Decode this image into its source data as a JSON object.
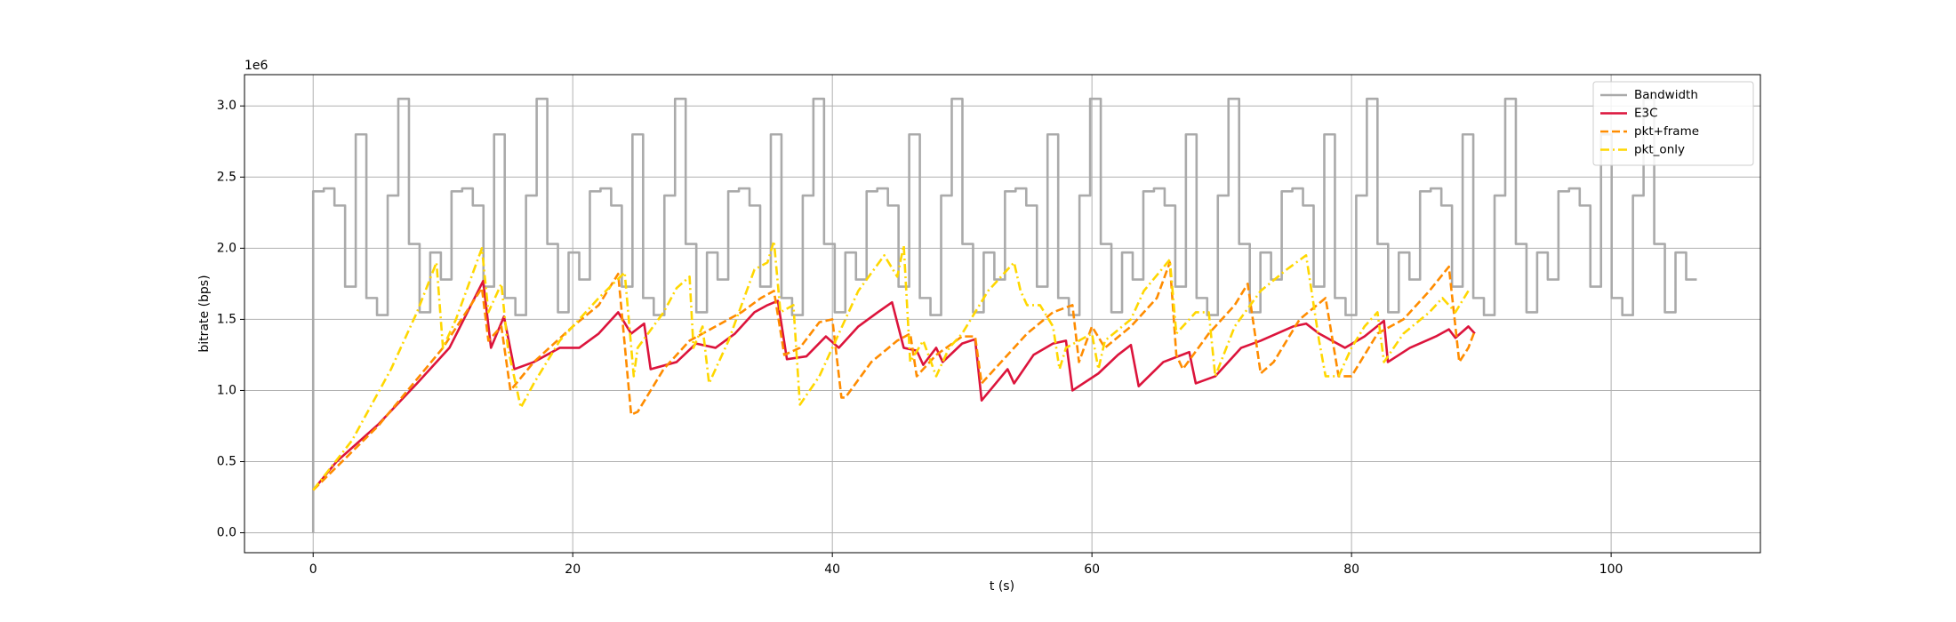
{
  "chart_data": {
    "type": "line",
    "x_label": "t (s)",
    "y_label": "bitrate (bps)",
    "y_offset_label": "1e6",
    "xlim": [
      -5.29,
      111.5
    ],
    "xticks": [
      0,
      20,
      40,
      60,
      80,
      100
    ],
    "ylim": [
      -0.14,
      3.22
    ],
    "yticks": [
      {
        "value": 0,
        "label": "0.0"
      },
      0.5,
      {
        "value": 1,
        "label": "1.0"
      },
      1.5,
      {
        "value": 2,
        "label": "2.0"
      },
      2.5,
      {
        "value": 3,
        "label": "3.0"
      }
    ],
    "grid": true,
    "legend_loc": "upper right",
    "series": [
      {
        "name": "Bandwidth",
        "color": "#aaaaaa",
        "linestyle": "solid",
        "drawstyle": "steps-post",
        "x": [
          0,
          0,
          0.82,
          1.64,
          2.46,
          3.28,
          4.1,
          4.92,
          5.74,
          6.56,
          7.38,
          8.2,
          9.02,
          9.84,
          10.66,
          11.48,
          12.3,
          13.12,
          13.94,
          14.76,
          15.58,
          16.4,
          17.22,
          18.04,
          18.86,
          19.68,
          20.5,
          21.32,
          22.14,
          22.96,
          23.78,
          24.6,
          25.42,
          26.24,
          27.06,
          27.88,
          28.7,
          29.52,
          30.34,
          31.16,
          31.98,
          32.8,
          33.62,
          34.44,
          35.26,
          36.08,
          36.9,
          37.72,
          38.54,
          39.36,
          40.18,
          41,
          41.82,
          42.64,
          43.46,
          44.28,
          45.1,
          45.92,
          46.74,
          47.56,
          48.38,
          49.2,
          50.02,
          50.84,
          51.66,
          52.48,
          53.3,
          54.12,
          54.94,
          55.76,
          56.58,
          57.4,
          58.22,
          59.04,
          59.86,
          60.68,
          61.5,
          62.32,
          63.14,
          63.96,
          64.78,
          65.6,
          66.42,
          67.24,
          68.06,
          68.88,
          69.7,
          70.52,
          71.34,
          72.16,
          72.98,
          73.8,
          74.62,
          75.44,
          76.26,
          77.08,
          77.9,
          78.72,
          79.54,
          80.36,
          81.18,
          82,
          82.82,
          83.64,
          84.46,
          85.28,
          86.1,
          86.92,
          87.74,
          88.56,
          89.38,
          90.2,
          91.02,
          91.84,
          92.66,
          93.48,
          94.3,
          95.12,
          95.94,
          96.76,
          97.58,
          98.4,
          99.22,
          100.04,
          100.86,
          101.68,
          102.5,
          103.32,
          104.14,
          104.96,
          105.78,
          106.6
        ],
        "values": [
          0,
          2.4,
          2.42,
          2.3,
          1.73,
          2.8,
          1.65,
          1.53,
          2.37,
          3.05,
          2.03,
          1.55,
          1.97,
          1.78,
          2.4,
          2.42,
          2.3,
          1.73,
          2.8,
          1.65,
          1.53,
          2.37,
          3.05,
          2.03,
          1.55,
          1.97,
          1.78,
          2.4,
          2.42,
          2.3,
          1.73,
          2.8,
          1.65,
          1.53,
          2.37,
          3.05,
          2.03,
          1.55,
          1.97,
          1.78,
          2.4,
          2.42,
          2.3,
          1.73,
          2.8,
          1.65,
          1.53,
          2.37,
          3.05,
          2.03,
          1.55,
          1.97,
          1.78,
          2.4,
          2.42,
          2.3,
          1.73,
          2.8,
          1.65,
          1.53,
          2.37,
          3.05,
          2.03,
          1.55,
          1.97,
          1.78,
          2.4,
          2.42,
          2.3,
          1.73,
          2.8,
          1.65,
          1.53,
          2.37,
          3.05,
          2.03,
          1.55,
          1.97,
          1.78,
          2.4,
          2.42,
          2.3,
          1.73,
          2.8,
          1.65,
          1.53,
          2.37,
          3.05,
          2.03,
          1.55,
          1.97,
          1.78,
          2.4,
          2.42,
          2.3,
          1.73,
          2.8,
          1.65,
          1.53,
          2.37,
          3.05,
          2.03,
          1.55,
          1.97,
          1.78,
          2.4,
          2.42,
          2.3,
          1.73,
          2.8,
          1.65,
          1.53,
          2.37,
          3.05,
          2.03,
          1.55,
          1.97,
          1.78,
          2.4,
          2.42,
          2.3,
          1.73,
          2.8,
          1.65,
          1.53,
          2.37,
          3.05,
          2.03,
          1.55,
          1.97,
          1.78,
          1.78
        ]
      },
      {
        "name": "E3C",
        "color": "#dc143c",
        "linestyle": "solid",
        "x": [
          0,
          1.8,
          5,
          8,
          10.5,
          13.1,
          13.7,
          14.7,
          15.5,
          17,
          19,
          20.5,
          22,
          23.5,
          24.5,
          25.5,
          26,
          28,
          29.5,
          31,
          32.5,
          34,
          35,
          35.8,
          36.5,
          38,
          39.5,
          40.5,
          42,
          43.5,
          44.6,
          45.5,
          46.5,
          47,
          48,
          48.5,
          50,
          51,
          51.5,
          53.5,
          54,
          55.5,
          57,
          58,
          58.5,
          60.5,
          62,
          63,
          63.6,
          65.5,
          67.5,
          68,
          69.5,
          71.5,
          73,
          75.5,
          76.5,
          77.5,
          79.5,
          81,
          82.5,
          82.8,
          84.5,
          86.5,
          87.5,
          88,
          89,
          89.5
        ],
        "values": [
          0.3,
          0.5,
          0.76,
          1.05,
          1.3,
          1.77,
          1.3,
          1.52,
          1.15,
          1.2,
          1.3,
          1.3,
          1.4,
          1.55,
          1.4,
          1.47,
          1.15,
          1.2,
          1.33,
          1.3,
          1.4,
          1.55,
          1.6,
          1.63,
          1.22,
          1.24,
          1.38,
          1.3,
          1.45,
          1.55,
          1.62,
          1.3,
          1.28,
          1.18,
          1.3,
          1.2,
          1.33,
          1.36,
          0.93,
          1.15,
          1.05,
          1.25,
          1.33,
          1.35,
          1,
          1.12,
          1.25,
          1.32,
          1.03,
          1.2,
          1.27,
          1.05,
          1.1,
          1.3,
          1.35,
          1.45,
          1.47,
          1.4,
          1.3,
          1.38,
          1.49,
          1.2,
          1.3,
          1.38,
          1.43,
          1.37,
          1.45,
          1.4
        ]
      },
      {
        "name": "pkt+frame",
        "color": "#ff8c00",
        "linestyle": "dashed",
        "x": [
          0,
          5,
          10,
          13,
          13.5,
          14.5,
          15.2,
          17,
          20,
          22,
          23.5,
          24.5,
          25,
          27,
          29,
          31,
          33,
          34.5,
          35.5,
          36.3,
          37.5,
          39,
          40,
          40.7,
          41,
          43,
          45,
          46,
          46.5,
          48,
          50,
          51,
          51.5,
          53,
          55,
          57,
          58.5,
          59,
          60,
          61,
          63,
          65,
          66,
          66.5,
          67,
          69,
          71,
          72,
          73,
          74,
          76,
          78,
          79,
          80,
          82,
          83,
          84,
          86,
          87.5,
          88.3,
          89,
          89.5
        ],
        "values": [
          0.3,
          0.75,
          1.3,
          1.72,
          1.35,
          1.45,
          1,
          1.2,
          1.45,
          1.6,
          1.82,
          0.83,
          0.85,
          1.15,
          1.35,
          1.45,
          1.55,
          1.65,
          1.7,
          1.25,
          1.3,
          1.48,
          1.5,
          0.95,
          0.95,
          1.2,
          1.35,
          1.4,
          1.1,
          1.25,
          1.38,
          1.38,
          1.05,
          1.2,
          1.4,
          1.55,
          1.6,
          1.2,
          1.45,
          1.3,
          1.45,
          1.65,
          1.9,
          1.25,
          1.15,
          1.4,
          1.6,
          1.75,
          1.12,
          1.2,
          1.5,
          1.65,
          1.1,
          1.1,
          1.4,
          1.45,
          1.5,
          1.7,
          1.87,
          1.2,
          1.3,
          1.42
        ]
      },
      {
        "name": "pkt_only",
        "color": "#ffd700",
        "linestyle": "dashdot",
        "x": [
          0,
          3,
          6,
          8,
          9.5,
          10,
          11,
          12,
          13,
          13.5,
          14.5,
          15,
          16,
          17,
          19,
          20,
          22,
          24,
          24.7,
          25,
          27,
          28,
          29,
          29.3,
          30,
          30.5,
          32,
          33,
          34,
          35,
          35.5,
          36,
          37,
          37.5,
          39,
          40,
          42,
          44,
          45,
          45.5,
          46,
          47,
          48,
          49,
          50,
          51,
          52,
          53,
          54,
          54.5,
          55,
          56,
          57,
          57.5,
          58,
          60,
          60.5,
          61,
          63,
          64,
          66,
          66.5,
          68,
          69,
          69.5,
          71,
          73,
          75,
          76.5,
          77.5,
          78,
          79,
          80,
          81,
          82,
          82.5,
          84,
          86,
          87,
          88,
          89
        ],
        "values": [
          0.3,
          0.65,
          1.15,
          1.55,
          1.9,
          1.3,
          1.5,
          1.75,
          2,
          1.55,
          1.75,
          1.3,
          0.88,
          1.05,
          1.35,
          1.45,
          1.65,
          1.83,
          1.1,
          1.3,
          1.55,
          1.72,
          1.8,
          1.3,
          1.45,
          1.05,
          1.35,
          1.6,
          1.85,
          1.9,
          2.05,
          1.55,
          1.6,
          0.9,
          1.1,
          1.3,
          1.7,
          1.95,
          1.8,
          2.02,
          1.2,
          1.35,
          1.1,
          1.3,
          1.4,
          1.55,
          1.7,
          1.8,
          1.9,
          1.7,
          1.6,
          1.6,
          1.45,
          1.15,
          1.3,
          1.4,
          1.15,
          1.35,
          1.5,
          1.7,
          1.92,
          1.4,
          1.55,
          1.55,
          1.1,
          1.45,
          1.7,
          1.85,
          1.95,
          1.35,
          1.1,
          1.1,
          1.3,
          1.45,
          1.55,
          1.2,
          1.4,
          1.55,
          1.65,
          1.55,
          1.7
        ]
      }
    ]
  }
}
